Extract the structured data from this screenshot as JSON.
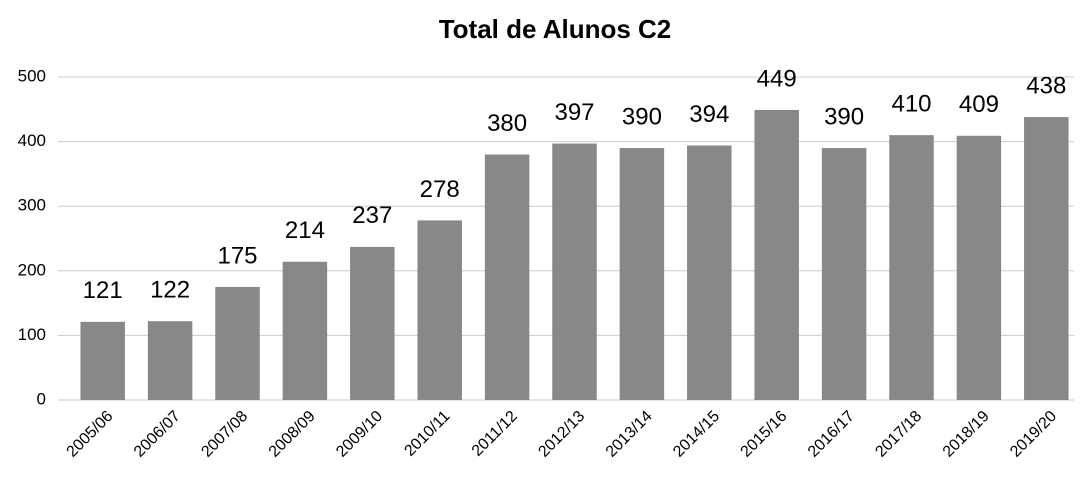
{
  "chart_data": {
    "type": "bar",
    "title": "Total de Alunos C2",
    "categories": [
      "2005/06",
      "2006/07",
      "2007/08",
      "2008/09",
      "2009/10",
      "2010/11",
      "2011/12",
      "2012/13",
      "2013/14",
      "2014/15",
      "2015/16",
      "2016/17",
      "2017/18",
      "2018/19",
      "2019/20"
    ],
    "values": [
      121,
      122,
      175,
      214,
      237,
      278,
      380,
      397,
      390,
      394,
      449,
      390,
      410,
      409,
      438
    ],
    "color": "#888888",
    "ylim": [
      0,
      500
    ],
    "yticks": [
      0,
      100,
      200,
      300,
      400,
      500
    ],
    "grid": true
  }
}
